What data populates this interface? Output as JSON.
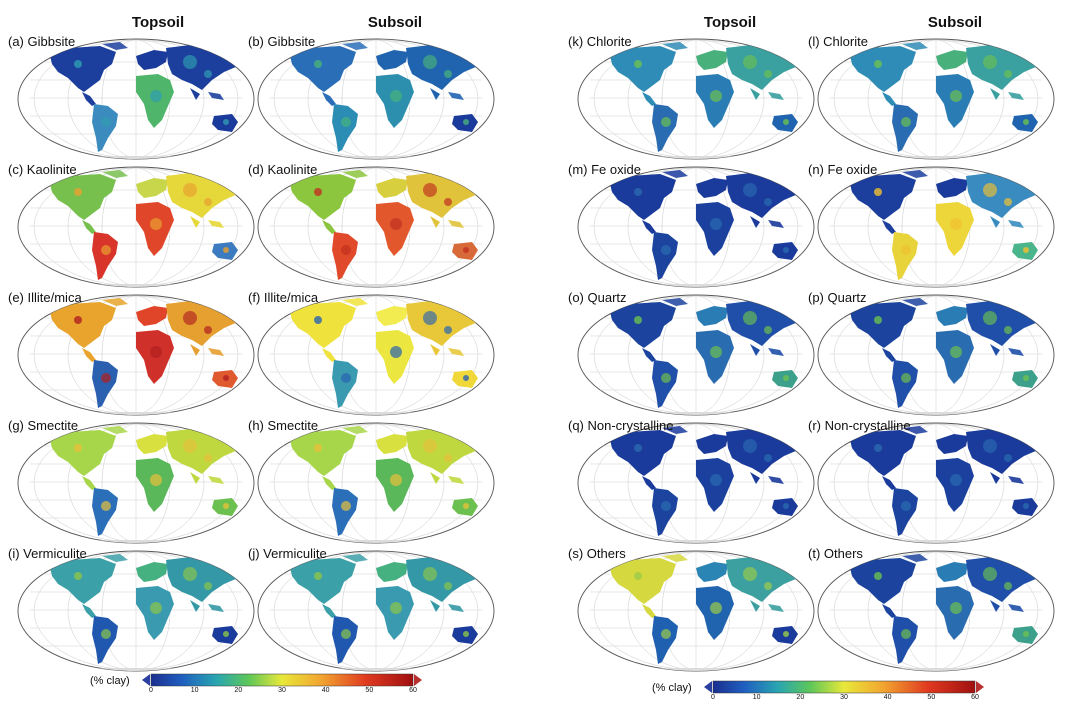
{
  "headers": {
    "left_topsoil": "Topsoil",
    "left_subsoil": "Subsoil",
    "right_topsoil": "Topsoil",
    "right_subsoil": "Subsoil"
  },
  "panels": [
    {
      "label": "(a) Gibbsite",
      "scheme": "blue_low"
    },
    {
      "label": "(b) Gibbsite",
      "scheme": "blue_low2"
    },
    {
      "label": "(c) Kaolinite",
      "scheme": "kaolinite_top"
    },
    {
      "label": "(d) Kaolinite",
      "scheme": "kaolinite_sub"
    },
    {
      "label": "(e) Illite/mica",
      "scheme": "illite_top"
    },
    {
      "label": "(f) Illite/mica",
      "scheme": "illite_sub"
    },
    {
      "label": "(g) Smectite",
      "scheme": "smectite"
    },
    {
      "label": "(h) Smectite",
      "scheme": "smectite"
    },
    {
      "label": "(i) Vermiculite",
      "scheme": "vermiculite"
    },
    {
      "label": "(j) Vermiculite",
      "scheme": "vermiculite"
    },
    {
      "label": "(k) Chlorite",
      "scheme": "chlorite"
    },
    {
      "label": "(l) Chlorite",
      "scheme": "chlorite"
    },
    {
      "label": "(m) Fe oxide",
      "scheme": "blue_only"
    },
    {
      "label": "(n) Fe oxide",
      "scheme": "feoxide_sub"
    },
    {
      "label": "(o) Quartz",
      "scheme": "quartz"
    },
    {
      "label": "(p) Quartz",
      "scheme": "quartz"
    },
    {
      "label": "(q) Non-crystalline",
      "scheme": "blue_only"
    },
    {
      "label": "(r) Non-crystalline",
      "scheme": "blue_only"
    },
    {
      "label": "(s) Others",
      "scheme": "others_top"
    },
    {
      "label": "(t) Others",
      "scheme": "quartz"
    }
  ],
  "colorbar": {
    "unit": "(% clay)",
    "ticks": [
      "0",
      "10",
      "20",
      "30",
      "40",
      "50",
      "60"
    ],
    "min": 0,
    "max": 60
  },
  "colors": {
    "ocean_bg": "#ffffff",
    "grid": "#c8c8c8",
    "low": "#1a3a9c",
    "mid": "#e8e83a",
    "high": "#c01818"
  }
}
